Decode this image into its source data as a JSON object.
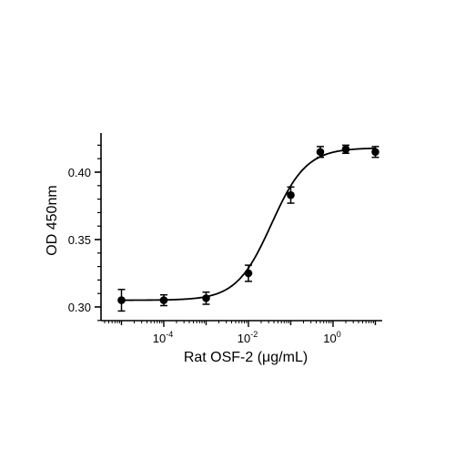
{
  "chart_data": {
    "type": "scatter",
    "title": "",
    "xlabel": "Rat OSF-2 (μg/mL)",
    "ylabel": "OD 450nm",
    "x_scale": "log",
    "xlim": [
      1e-05,
      20
    ],
    "ylim": [
      0.295,
      0.425
    ],
    "grid": false,
    "x_ticks": [
      {
        "value": 0.0001,
        "base": "10",
        "exp": "-4"
      },
      {
        "value": 0.01,
        "base": "10",
        "exp": "-2"
      },
      {
        "value": 1,
        "base": "10",
        "exp": "0"
      }
    ],
    "y_ticks": [
      {
        "value": 0.3,
        "label": "0.30"
      },
      {
        "value": 0.35,
        "label": "0.35"
      },
      {
        "value": 0.4,
        "label": "0.40"
      }
    ],
    "series": [
      {
        "points": [
          {
            "x": 1e-05,
            "y": 0.305,
            "err": 0.008
          },
          {
            "x": 0.0001,
            "y": 0.305,
            "err": 0.004
          },
          {
            "x": 0.001,
            "y": 0.3065,
            "err": 0.0045
          },
          {
            "x": 0.01,
            "y": 0.325,
            "err": 0.006
          },
          {
            "x": 0.1,
            "y": 0.383,
            "err": 0.006
          },
          {
            "x": 0.5,
            "y": 0.415,
            "err": 0.004
          },
          {
            "x": 2,
            "y": 0.417,
            "err": 0.003
          },
          {
            "x": 10,
            "y": 0.415,
            "err": 0.004
          }
        ],
        "fit": {
          "model": "four-parameter logistic",
          "bottom": 0.305,
          "top": 0.418,
          "ec50": 0.035,
          "hill": 1.05
        }
      }
    ],
    "colors": {
      "marker": "#000000",
      "line": "#000000",
      "axis": "#000000"
    }
  }
}
